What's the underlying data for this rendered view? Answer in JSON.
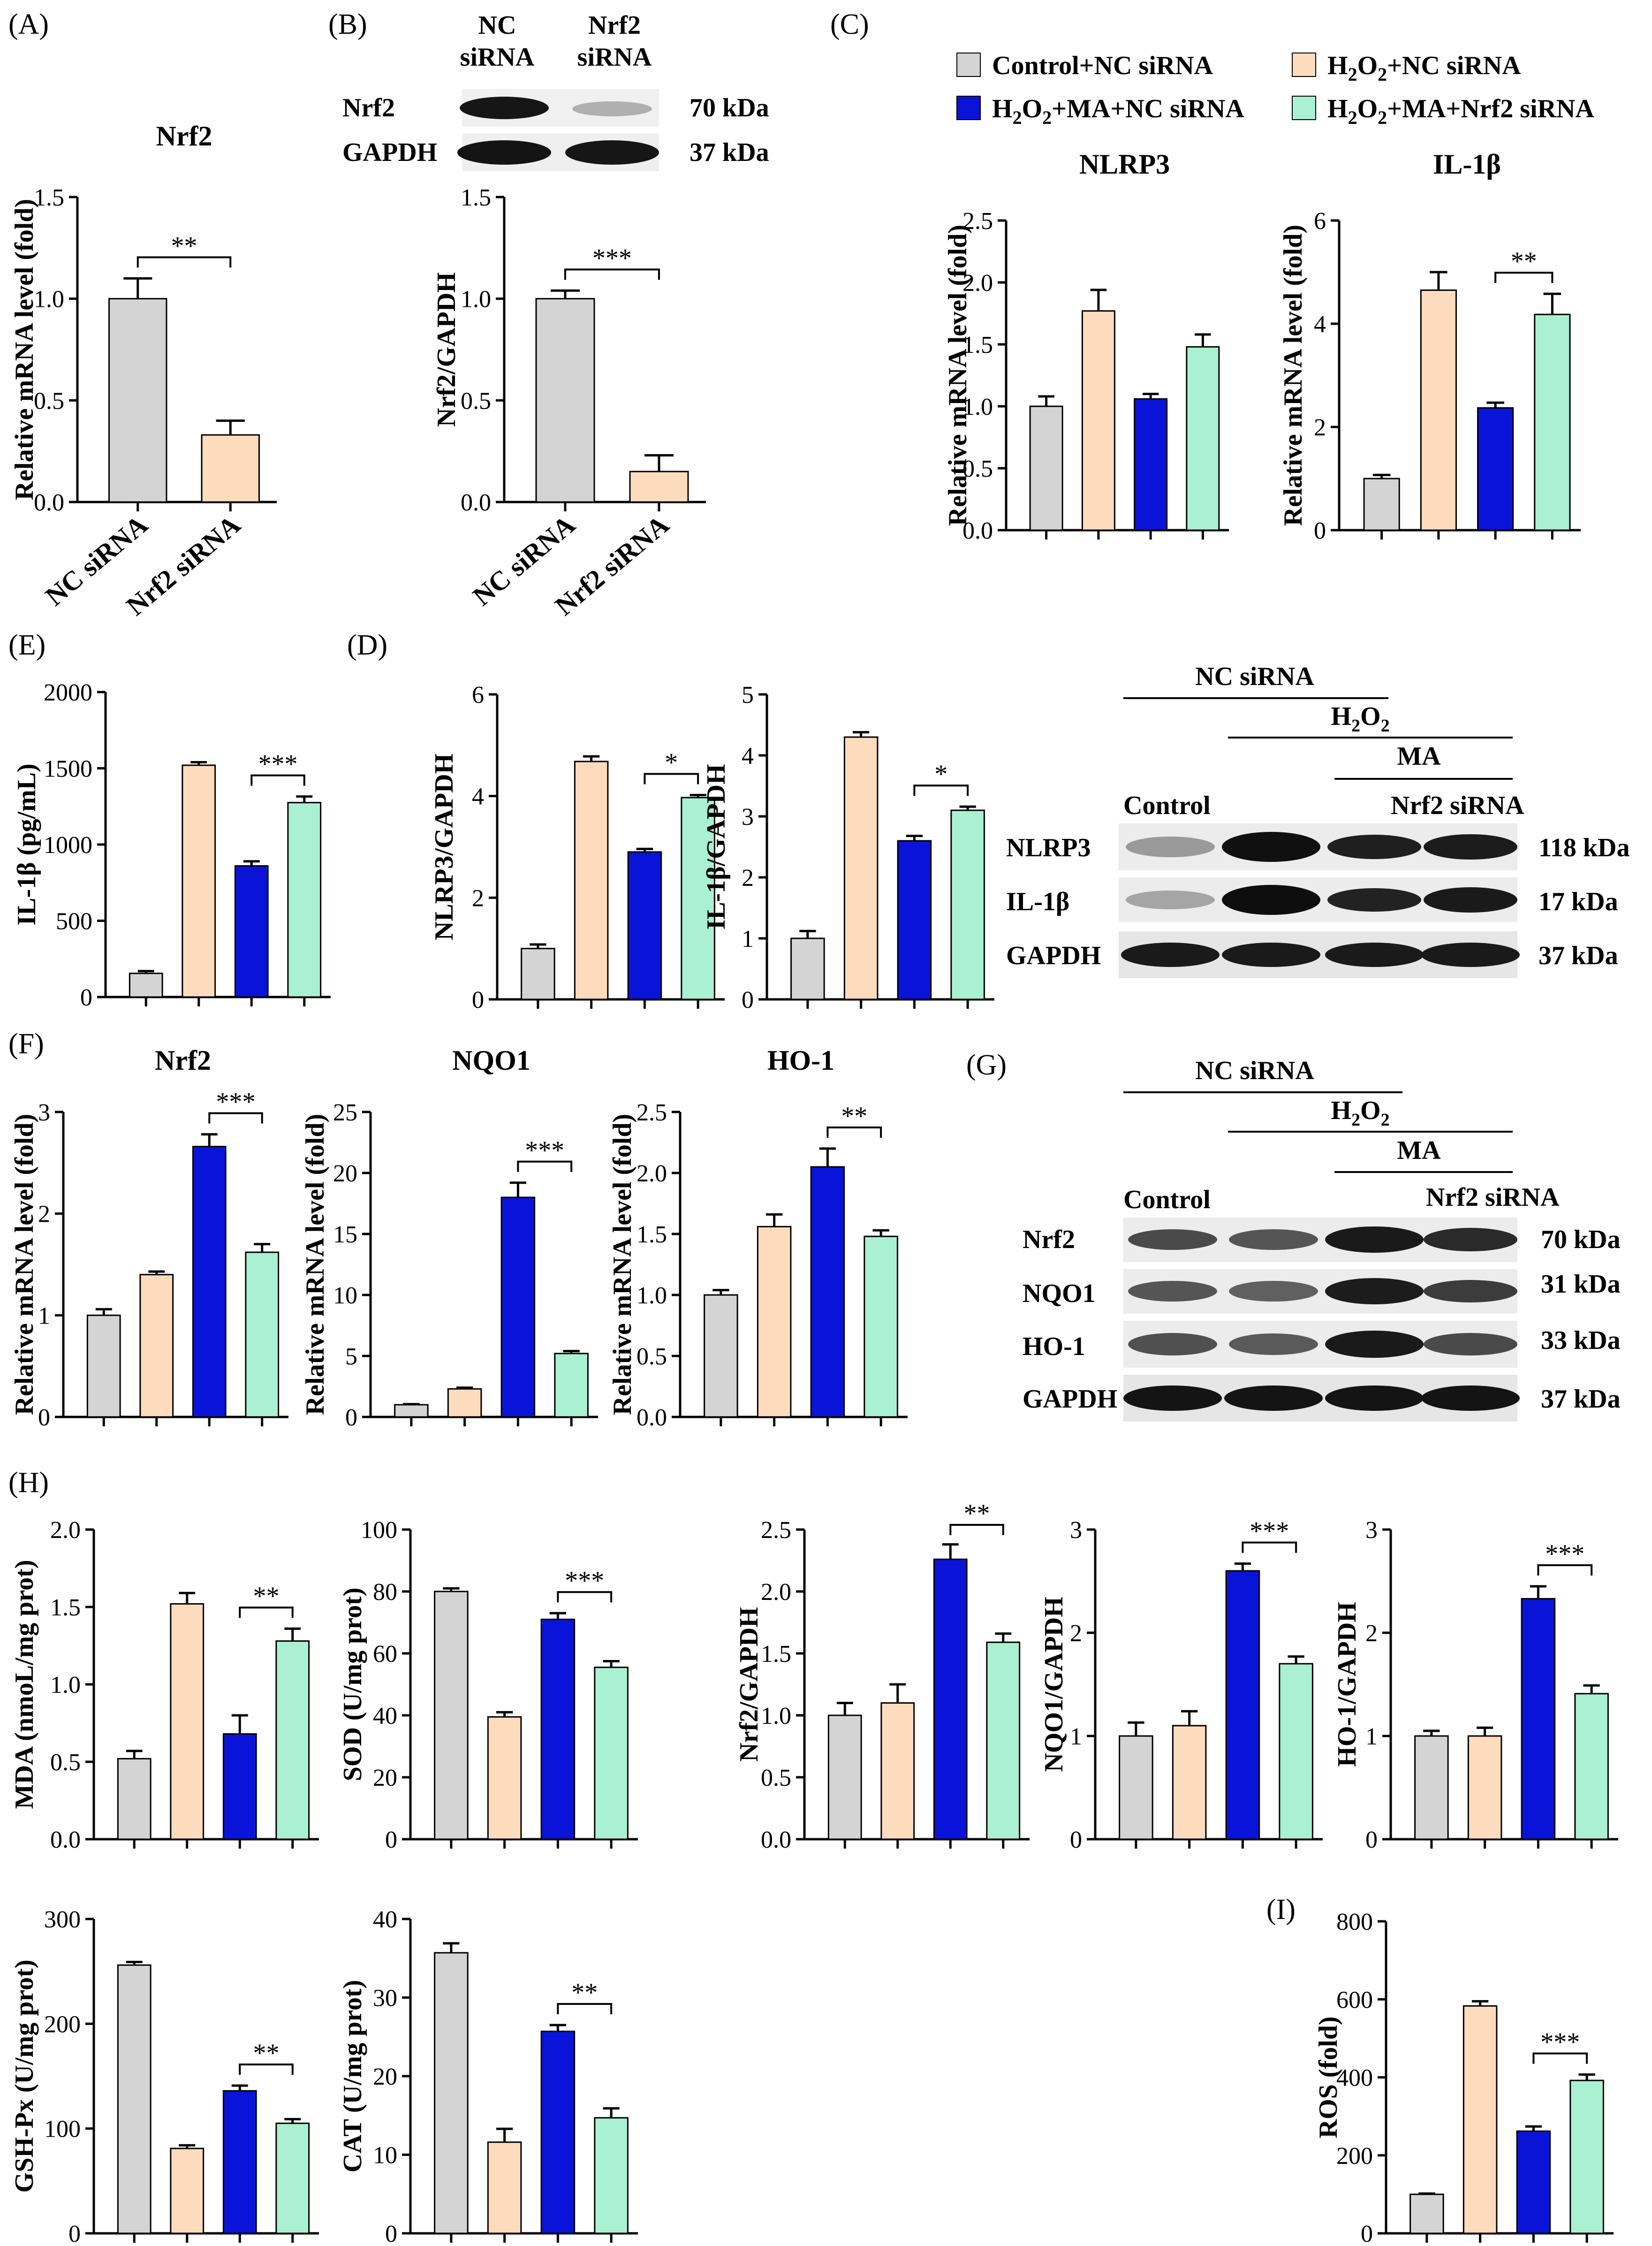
{
  "colors": {
    "control": "#d4d4d4",
    "h2o2": "#fcdcbd",
    "ma": "#0a14d8",
    "nrf2si": "#aaf0d2",
    "axis": "#000000",
    "bar_stroke": "#000000"
  },
  "legend": [
    {
      "key": "control",
      "text": "Control+NC siRNA"
    },
    {
      "key": "h2o2",
      "text": "H2O2+NC siRNA"
    },
    {
      "key": "ma",
      "text": "H2O2+MA+NC siRNA"
    },
    {
      "key": "nrf2si",
      "text": "H2O2+MA+Nrf2 siRNA"
    }
  ],
  "panel_labels": [
    "(A)",
    "(B)",
    "(C)",
    "(E)",
    "(D)",
    "(F)",
    "(G)",
    "(H)",
    "(I)"
  ],
  "blots": {
    "b": {
      "header": [
        "NC siRNA",
        "Nrf2 siRNA"
      ],
      "rows": [
        {
          "protein": "Nrf2",
          "size": "70 kDa"
        },
        {
          "protein": "GAPDH",
          "size": "37 kDa"
        }
      ]
    },
    "d": {
      "group_nc": "NC siRNA",
      "group_h2o2": "H2O2",
      "group_ma": "MA",
      "lane_control": "Control",
      "lane_nrf2": "Nrf2 siRNA",
      "rows": [
        {
          "protein": "NLRP3",
          "size": "118 kDa"
        },
        {
          "protein": "IL-1β",
          "size": "17 kDa"
        },
        {
          "protein": "GAPDH",
          "size": "37 kDa"
        }
      ]
    },
    "g": {
      "group_nc": "NC siRNA",
      "group_h2o2": "H2O2",
      "group_ma": "MA",
      "lane_control": "Control",
      "lane_nrf2": "Nrf2 siRNA",
      "rows": [
        {
          "protein": "Nrf2",
          "size": "70 kDa"
        },
        {
          "protein": "NQO1",
          "size": "31 kDa"
        },
        {
          "protein": "HO-1",
          "size": "33 kDa"
        },
        {
          "protein": "GAPDH",
          "size": "37 kDa"
        }
      ]
    }
  },
  "chart_data": [
    {
      "id": "A",
      "type": "bar",
      "title": "Nrf2",
      "ylabel": "Relative mRNA level (fold)",
      "ylim": [
        0,
        1.5
      ],
      "yticks": [
        "0.0",
        "0.5",
        "1.0",
        "1.5"
      ],
      "categories": [
        "NC siRNA",
        "Nrf2 siRNA"
      ],
      "values": [
        1.0,
        0.33
      ],
      "errors": [
        0.1,
        0.07
      ],
      "color_keys": [
        "control",
        "h2o2"
      ],
      "significance": [
        {
          "from": 0,
          "to": 1,
          "label": "**"
        }
      ]
    },
    {
      "id": "B",
      "type": "bar",
      "title": "",
      "ylabel": "Nrf2/GAPDH",
      "ylim": [
        0,
        1.5
      ],
      "yticks": [
        "0.0",
        "0.5",
        "1.0",
        "1.5"
      ],
      "categories": [
        "NC siRNA",
        "Nrf2 siRNA"
      ],
      "values": [
        1.0,
        0.15
      ],
      "errors": [
        0.04,
        0.08
      ],
      "color_keys": [
        "control",
        "h2o2"
      ],
      "significance": [
        {
          "from": 0,
          "to": 1,
          "label": "***"
        }
      ]
    },
    {
      "id": "C1",
      "type": "bar",
      "title": "NLRP3",
      "ylabel": "Relative mRNA level (fold)",
      "ylim": [
        0,
        2.5
      ],
      "yticks": [
        "0.0",
        "0.5",
        "1.0",
        "1.5",
        "2.0",
        "2.5"
      ],
      "values": [
        1.0,
        1.77,
        1.06,
        1.48
      ],
      "errors": [
        0.08,
        0.17,
        0.04,
        0.1
      ],
      "color_keys": [
        "control",
        "h2o2",
        "ma",
        "nrf2si"
      ],
      "significance": []
    },
    {
      "id": "C2",
      "type": "bar",
      "title": "IL-1β",
      "ylabel": "Relative mRNA level (fold)",
      "ylim": [
        0,
        6
      ],
      "yticks": [
        "0",
        "2",
        "4",
        "6"
      ],
      "values": [
        1.0,
        4.65,
        2.37,
        4.18
      ],
      "errors": [
        0.07,
        0.35,
        0.1,
        0.4
      ],
      "color_keys": [
        "control",
        "h2o2",
        "ma",
        "nrf2si"
      ],
      "significance": [
        {
          "from": 2,
          "to": 3,
          "label": "**"
        }
      ]
    },
    {
      "id": "E",
      "type": "bar",
      "title": "",
      "ylabel": "IL-1β (pg/mL)",
      "ylim": [
        0,
        2000
      ],
      "yticks": [
        "0",
        "500",
        "1000",
        "1500",
        "2000"
      ],
      "values": [
        155,
        1520,
        860,
        1275
      ],
      "errors": [
        15,
        20,
        30,
        40
      ],
      "color_keys": [
        "control",
        "h2o2",
        "ma",
        "nrf2si"
      ],
      "significance": [
        {
          "from": 2,
          "to": 3,
          "label": "***"
        }
      ]
    },
    {
      "id": "D1",
      "type": "bar",
      "title": "",
      "ylabel": "NLRP3/GAPDH",
      "ylim": [
        0,
        6
      ],
      "yticks": [
        "0",
        "2",
        "4",
        "6"
      ],
      "values": [
        1.0,
        4.68,
        2.9,
        3.97
      ],
      "errors": [
        0.08,
        0.1,
        0.06,
        0.05
      ],
      "color_keys": [
        "control",
        "h2o2",
        "ma",
        "nrf2si"
      ],
      "significance": [
        {
          "from": 2,
          "to": 3,
          "label": "*"
        }
      ]
    },
    {
      "id": "D2",
      "type": "bar",
      "title": "",
      "ylabel": "IL-1β/GAPDH",
      "ylim": [
        0,
        5
      ],
      "yticks": [
        "0",
        "1",
        "2",
        "3",
        "4",
        "5"
      ],
      "values": [
        1.0,
        4.3,
        2.6,
        3.1
      ],
      "errors": [
        0.12,
        0.08,
        0.08,
        0.06
      ],
      "color_keys": [
        "control",
        "h2o2",
        "ma",
        "nrf2si"
      ],
      "significance": [
        {
          "from": 2,
          "to": 3,
          "label": "*"
        }
      ]
    },
    {
      "id": "F1",
      "type": "bar",
      "title": "Nrf2",
      "ylabel": "Relative mRNA level (fold)",
      "ylim": [
        0,
        3
      ],
      "yticks": [
        "0",
        "1",
        "2",
        "3"
      ],
      "values": [
        1.0,
        1.4,
        2.66,
        1.62
      ],
      "errors": [
        0.06,
        0.03,
        0.12,
        0.08
      ],
      "color_keys": [
        "control",
        "h2o2",
        "ma",
        "nrf2si"
      ],
      "significance": [
        {
          "from": 2,
          "to": 3,
          "label": "***"
        }
      ]
    },
    {
      "id": "F2",
      "type": "bar",
      "title": "NQO1",
      "ylabel": "Relative mRNA level (fold)",
      "ylim": [
        0,
        25
      ],
      "yticks": [
        "0",
        "5",
        "10",
        "15",
        "20",
        "25"
      ],
      "values": [
        1.0,
        2.3,
        18.0,
        5.2
      ],
      "errors": [
        0.05,
        0.1,
        1.2,
        0.2
      ],
      "color_keys": [
        "control",
        "h2o2",
        "ma",
        "nrf2si"
      ],
      "significance": [
        {
          "from": 2,
          "to": 3,
          "label": "***"
        }
      ]
    },
    {
      "id": "F3",
      "type": "bar",
      "title": "HO-1",
      "ylabel": "Relative mRNA level (fold)",
      "ylim": [
        0,
        2.5
      ],
      "yticks": [
        "0.0",
        "0.5",
        "1.0",
        "1.5",
        "2.0",
        "2.5"
      ],
      "values": [
        1.0,
        1.56,
        2.05,
        1.48
      ],
      "errors": [
        0.04,
        0.1,
        0.15,
        0.05
      ],
      "color_keys": [
        "control",
        "h2o2",
        "ma",
        "nrf2si"
      ],
      "significance": [
        {
          "from": 2,
          "to": 3,
          "label": "**"
        }
      ]
    },
    {
      "id": "H1",
      "type": "bar",
      "title": "",
      "ylabel": "MDA (nmoL/mg prot)",
      "ylim": [
        0,
        2.0
      ],
      "yticks": [
        "0.0",
        "0.5",
        "1.0",
        "1.5",
        "2.0"
      ],
      "values": [
        0.52,
        1.52,
        0.68,
        1.28
      ],
      "errors": [
        0.05,
        0.07,
        0.12,
        0.08
      ],
      "color_keys": [
        "control",
        "h2o2",
        "ma",
        "nrf2si"
      ],
      "significance": [
        {
          "from": 2,
          "to": 3,
          "label": "**"
        }
      ]
    },
    {
      "id": "H2",
      "type": "bar",
      "title": "",
      "ylabel": "SOD (U/mg prot)",
      "ylim": [
        0,
        100
      ],
      "yticks": [
        "0",
        "20",
        "40",
        "60",
        "80",
        "100"
      ],
      "values": [
        80,
        39.5,
        71,
        55.5
      ],
      "errors": [
        1,
        1.5,
        2,
        2
      ],
      "color_keys": [
        "control",
        "h2o2",
        "ma",
        "nrf2si"
      ],
      "significance": [
        {
          "from": 2,
          "to": 3,
          "label": "***"
        }
      ]
    },
    {
      "id": "H3",
      "type": "bar",
      "title": "",
      "ylabel": "Nrf2/GAPDH",
      "ylim": [
        0,
        2.5
      ],
      "yticks": [
        "0.0",
        "0.5",
        "1.0",
        "1.5",
        "2.0",
        "2.5"
      ],
      "values": [
        1.0,
        1.1,
        2.26,
        1.59
      ],
      "errors": [
        0.1,
        0.15,
        0.12,
        0.07
      ],
      "color_keys": [
        "control",
        "h2o2",
        "ma",
        "nrf2si"
      ],
      "significance": [
        {
          "from": 2,
          "to": 3,
          "label": "**"
        }
      ]
    },
    {
      "id": "H4",
      "type": "bar",
      "title": "",
      "ylabel": "NQO1/GAPDH",
      "ylim": [
        0,
        3
      ],
      "yticks": [
        "0",
        "1",
        "2",
        "3"
      ],
      "values": [
        1.0,
        1.1,
        2.6,
        1.7
      ],
      "errors": [
        0.13,
        0.14,
        0.07,
        0.07
      ],
      "color_keys": [
        "control",
        "h2o2",
        "ma",
        "nrf2si"
      ],
      "significance": [
        {
          "from": 2,
          "to": 3,
          "label": "***"
        }
      ]
    },
    {
      "id": "H5",
      "type": "bar",
      "title": "",
      "ylabel": "HO-1/GAPDH",
      "ylim": [
        0,
        3
      ],
      "yticks": [
        "0",
        "1",
        "2",
        "3"
      ],
      "values": [
        1.0,
        1.0,
        2.33,
        1.41
      ],
      "errors": [
        0.05,
        0.08,
        0.12,
        0.08
      ],
      "color_keys": [
        "control",
        "h2o2",
        "ma",
        "nrf2si"
      ],
      "significance": [
        {
          "from": 2,
          "to": 3,
          "label": "***"
        }
      ]
    },
    {
      "id": "H6",
      "type": "bar",
      "title": "",
      "ylabel": "GSH-Px (U/mg prot)",
      "ylim": [
        0,
        300
      ],
      "yticks": [
        "0",
        "100",
        "200",
        "300"
      ],
      "values": [
        256,
        81,
        136,
        105
      ],
      "errors": [
        3,
        3,
        5,
        4
      ],
      "color_keys": [
        "control",
        "h2o2",
        "ma",
        "nrf2si"
      ],
      "significance": [
        {
          "from": 2,
          "to": 3,
          "label": "**"
        }
      ]
    },
    {
      "id": "H7",
      "type": "bar",
      "title": "",
      "ylabel": "CAT (U/mg prot)",
      "ylim": [
        0,
        40
      ],
      "yticks": [
        "0",
        "10",
        "20",
        "30",
        "40"
      ],
      "values": [
        35.7,
        11.6,
        25.7,
        14.7
      ],
      "errors": [
        1.2,
        1.7,
        0.8,
        1.2
      ],
      "color_keys": [
        "control",
        "h2o2",
        "ma",
        "nrf2si"
      ],
      "significance": [
        {
          "from": 2,
          "to": 3,
          "label": "**"
        }
      ]
    },
    {
      "id": "I",
      "type": "bar",
      "title": "",
      "ylabel": "ROS (fold)",
      "ylim": [
        0,
        800
      ],
      "yticks": [
        "0",
        "200",
        "400",
        "600",
        "800"
      ],
      "values": [
        100,
        583,
        262,
        392
      ],
      "errors": [
        2,
        12,
        12,
        15
      ],
      "color_keys": [
        "control",
        "h2o2",
        "ma",
        "nrf2si"
      ],
      "significance": [
        {
          "from": 2,
          "to": 3,
          "label": "***"
        }
      ]
    }
  ]
}
